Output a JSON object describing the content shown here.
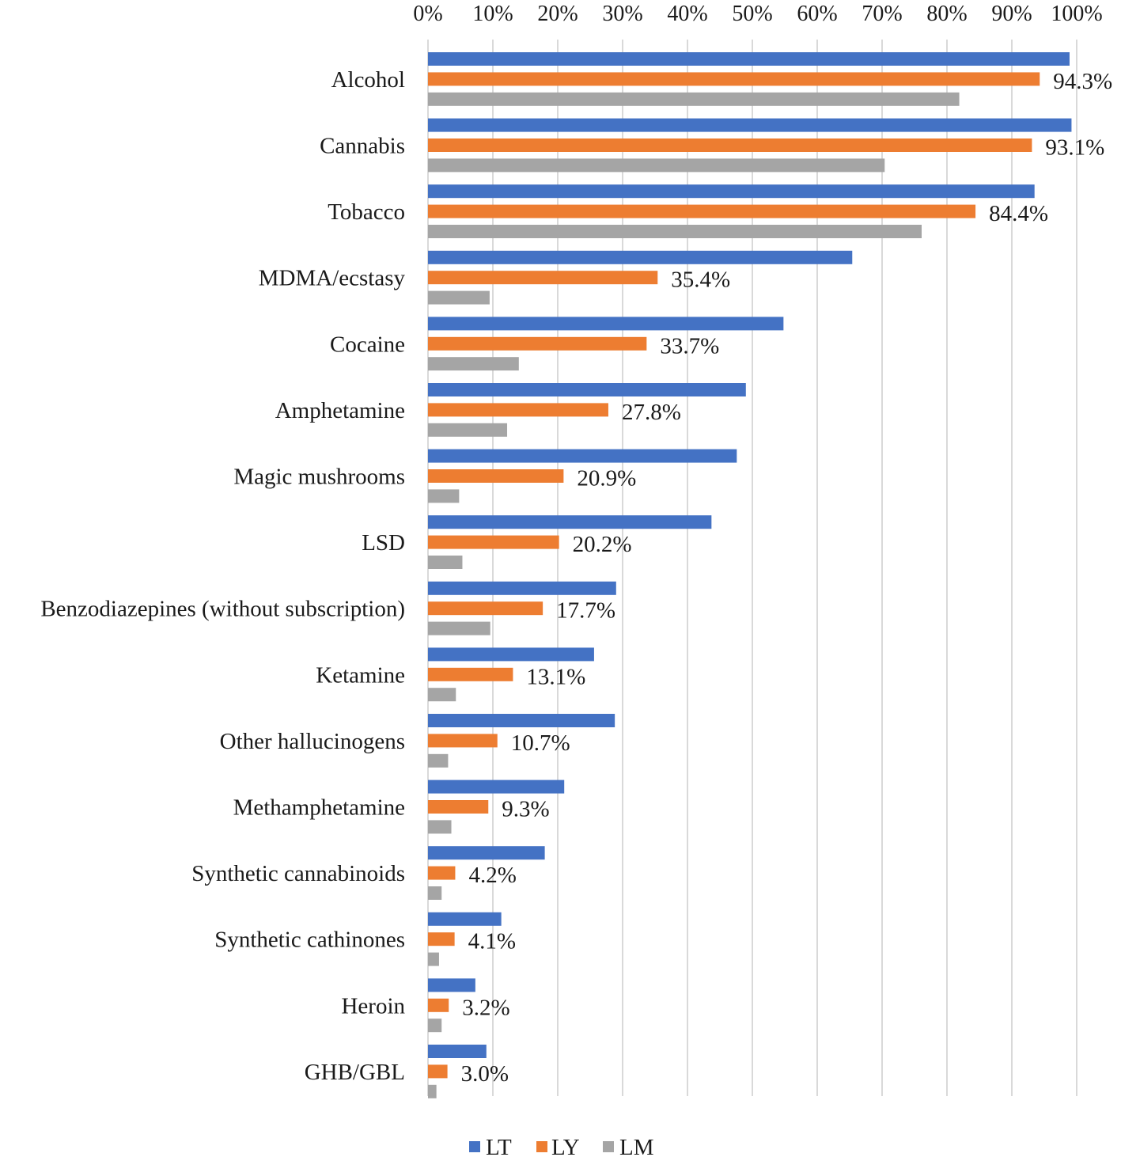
{
  "chart_data": {
    "type": "bar",
    "orientation": "horizontal",
    "categories": [
      "Alcohol",
      "Cannabis",
      "Tobacco",
      "MDMA/ecstasy",
      "Cocaine",
      "Amphetamine",
      "Magic mushrooms",
      "LSD",
      "Benzodiazepines (without subscription)",
      "Ketamine",
      "Other hallucinogens",
      "Methamphetamine",
      "Synthetic cannabinoids",
      "Synthetic cathinones",
      "Heroin",
      "GHB/GBL"
    ],
    "series": [
      {
        "name": "LT",
        "color": "#4472C4",
        "values": [
          98.9,
          99.2,
          93.5,
          65.4,
          54.8,
          49.0,
          47.6,
          43.7,
          29.0,
          25.6,
          28.8,
          21.0,
          18.0,
          11.3,
          7.3,
          9.0
        ]
      },
      {
        "name": "LY",
        "color": "#ED7D31",
        "values": [
          94.3,
          93.1,
          84.4,
          35.4,
          33.7,
          27.8,
          20.9,
          20.2,
          17.7,
          13.1,
          10.7,
          9.3,
          4.2,
          4.1,
          3.2,
          3.0
        ]
      },
      {
        "name": "LM",
        "color": "#A5A5A5",
        "values": [
          81.9,
          70.4,
          76.1,
          9.5,
          14.0,
          12.2,
          4.8,
          5.3,
          9.6,
          4.3,
          3.1,
          3.6,
          2.1,
          1.7,
          2.1,
          1.3
        ]
      }
    ],
    "data_labels": [
      "94.3%",
      "93.1%",
      "84.4%",
      "35.4%",
      "33.7%",
      "27.8%",
      "20.9%",
      "20.2%",
      "17.7%",
      "13.1%",
      "10.7%",
      "9.3%",
      "4.2%",
      "4.1%",
      "3.2%",
      "3.0%"
    ],
    "x_ticks": [
      "0%",
      "10%",
      "20%",
      "30%",
      "40%",
      "50%",
      "60%",
      "70%",
      "80%",
      "90%",
      "100%"
    ],
    "xlim": [
      0,
      100
    ],
    "x_axis_position": "top",
    "grid": true,
    "legend": {
      "placement": "bottom",
      "entries": [
        "LT",
        "LY",
        "LM"
      ]
    },
    "title": "",
    "xlabel": "",
    "ylabel": ""
  }
}
